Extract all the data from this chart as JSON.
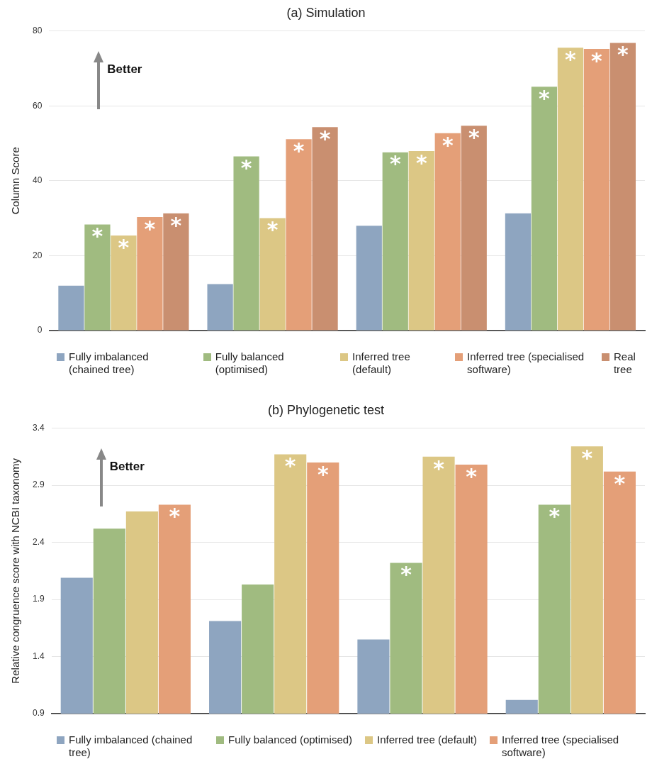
{
  "chart_data": [
    {
      "type": "bar",
      "title": "(a) Simulation",
      "ylabel": "Column Score",
      "categories": [
        null,
        null,
        null,
        null
      ],
      "series": [
        {
          "name": "Fully imbalanced (chained tree)",
          "color": "#8ea5c0",
          "values": [
            12.0,
            12.4,
            28.0,
            31.3
          ],
          "value_labels": [
            null,
            null,
            null,
            null
          ]
        },
        {
          "name": "Fully balanced (optimised)",
          "color": "#a0bb80",
          "values": [
            28.3,
            46.5,
            47.6,
            65.1
          ],
          "value_labels": [
            "*",
            "*",
            "*",
            "*"
          ]
        },
        {
          "name": "Inferred tree (default)",
          "color": "#dcc785",
          "values": [
            25.4,
            30.0,
            47.9,
            75.5
          ],
          "value_labels": [
            "*",
            "*",
            "*",
            "*"
          ]
        },
        {
          "name": "Inferred tree (specialised software)",
          "color": "#e49f78",
          "values": [
            30.3,
            51.1,
            52.7,
            75.2
          ],
          "value_labels": [
            "*",
            "*",
            "*",
            "*"
          ]
        },
        {
          "name": "Real tree",
          "color": "#c98f70",
          "values": [
            31.3,
            54.3,
            54.7,
            76.8
          ],
          "value_labels": [
            "*",
            "*",
            "*",
            "*"
          ]
        }
      ],
      "ylim": [
        0,
        80
      ],
      "yticks": [
        0,
        20,
        40,
        60,
        80
      ],
      "grid": "y",
      "legend": "bottom",
      "annotations": [
        "Better"
      ]
    },
    {
      "type": "bar",
      "title": "(b) Phylogenetic test",
      "ylabel": "Relative congruence score with NCBI taxonomy",
      "categories": [
        null,
        null,
        null,
        null
      ],
      "series": [
        {
          "name": "Fully imbalanced (chained tree)",
          "color": "#8ea5c0",
          "values": [
            2.09,
            1.71,
            1.55,
            1.02
          ],
          "value_labels": [
            null,
            null,
            null,
            null
          ]
        },
        {
          "name": "Fully balanced (optimised)",
          "color": "#a0bb80",
          "values": [
            2.52,
            2.03,
            2.22,
            2.73
          ],
          "value_labels": [
            null,
            null,
            "*",
            "*"
          ]
        },
        {
          "name": "Inferred tree (default)",
          "color": "#dcc785",
          "values": [
            2.67,
            3.17,
            3.15,
            3.24
          ],
          "value_labels": [
            null,
            "*",
            "*",
            "*"
          ]
        },
        {
          "name": "Inferred tree (specialised software)",
          "color": "#e49f78",
          "values": [
            2.73,
            3.1,
            3.08,
            3.02
          ],
          "value_labels": [
            "*",
            "*",
            "*",
            "*"
          ]
        }
      ],
      "ylim": [
        0.9,
        3.4
      ],
      "yticks": [
        0.9,
        1.4,
        1.9,
        2.4,
        2.9,
        3.4
      ],
      "grid": "y",
      "legend": "bottom",
      "annotations": [
        "Better"
      ]
    }
  ]
}
